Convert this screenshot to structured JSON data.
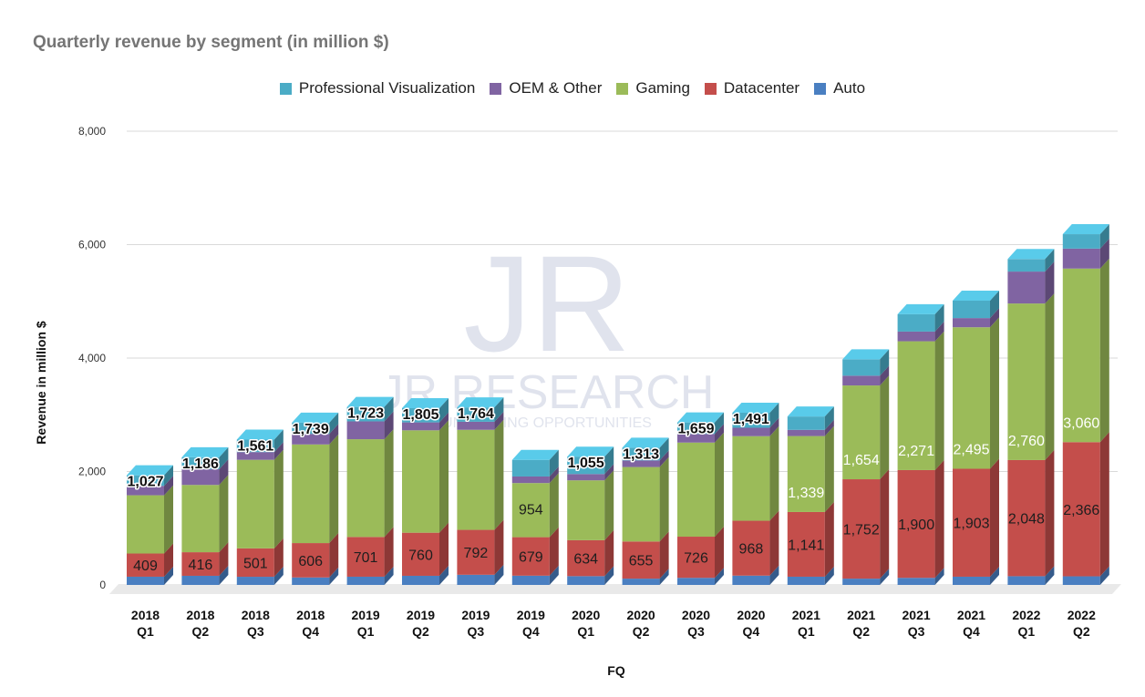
{
  "chart_data": {
    "type": "bar",
    "stacked": true,
    "title": "Quarterly revenue by segment (in million $)",
    "xlabel": "FQ",
    "ylabel": "Revenue in million $",
    "ylim": [
      0,
      8000
    ],
    "yticks": [
      0,
      2000,
      4000,
      6000,
      8000
    ],
    "ytick_labels": [
      "0",
      "2,000",
      "4,000",
      "6,000",
      "8,000"
    ],
    "grid": true,
    "legend_position": "top",
    "categories": [
      [
        "2018",
        "Q1"
      ],
      [
        "2018",
        "Q2"
      ],
      [
        "2018",
        "Q3"
      ],
      [
        "2018",
        "Q4"
      ],
      [
        "2019",
        "Q1"
      ],
      [
        "2019",
        "Q2"
      ],
      [
        "2019",
        "Q3"
      ],
      [
        "2019",
        "Q4"
      ],
      [
        "2020",
        "Q1"
      ],
      [
        "2020",
        "Q2"
      ],
      [
        "2020",
        "Q3"
      ],
      [
        "2020",
        "Q4"
      ],
      [
        "2021",
        "Q1"
      ],
      [
        "2021",
        "Q2"
      ],
      [
        "2021",
        "Q3"
      ],
      [
        "2021",
        "Q4"
      ],
      [
        "2022",
        "Q1"
      ],
      [
        "2022",
        "Q2"
      ]
    ],
    "series": [
      {
        "name": "Auto",
        "color": "#4a7fc1",
        "values": [
          145,
          161,
          144,
          132,
          145,
          161,
          179,
          163,
          155,
          111,
          125,
          164,
          145,
          111,
          125,
          145,
          154,
          152
        ]
      },
      {
        "name": "Datacenter",
        "color": "#c44e4b",
        "values": [
          409,
          416,
          501,
          606,
          701,
          760,
          792,
          679,
          634,
          655,
          726,
          968,
          1141,
          1752,
          1900,
          1903,
          2048,
          2366
        ]
      },
      {
        "name": "Gaming",
        "color": "#9bbb59",
        "values": [
          1027,
          1186,
          1561,
          1739,
          1723,
          1805,
          1764,
          954,
          1055,
          1313,
          1659,
          1491,
          1339,
          1654,
          2271,
          2495,
          2760,
          3060
        ]
      },
      {
        "name": "OEM & Other",
        "color": "#8064a2",
        "values": [
          166,
          276,
          136,
          185,
          315,
          140,
          142,
          116,
          111,
          116,
          152,
          148,
          109,
          172,
          171,
          162,
          563,
          352
        ]
      },
      {
        "name": "Professional Visualization",
        "color": "#4bacc6",
        "values": [
          186,
          212,
          220,
          200,
          254,
          251,
          253,
          293,
          307,
          225,
          203,
          266,
          236,
          288,
          307,
          307,
          221,
          254
        ]
      }
    ],
    "data_labels": {
      "Datacenter": true,
      "Gaming": true
    }
  },
  "legend": [
    {
      "label": "Professional Visualization",
      "color": "#4bacc6"
    },
    {
      "label": "OEM & Other",
      "color": "#8064a2"
    },
    {
      "label": "Gaming",
      "color": "#9bbb59"
    },
    {
      "label": "Datacenter",
      "color": "#c44e4b"
    },
    {
      "label": "Auto",
      "color": "#4a7fc1"
    }
  ],
  "watermark": {
    "logo": "JR",
    "name": "JR RESEARCH",
    "tagline": "UNLOCKING OPPORTUNITIES"
  }
}
